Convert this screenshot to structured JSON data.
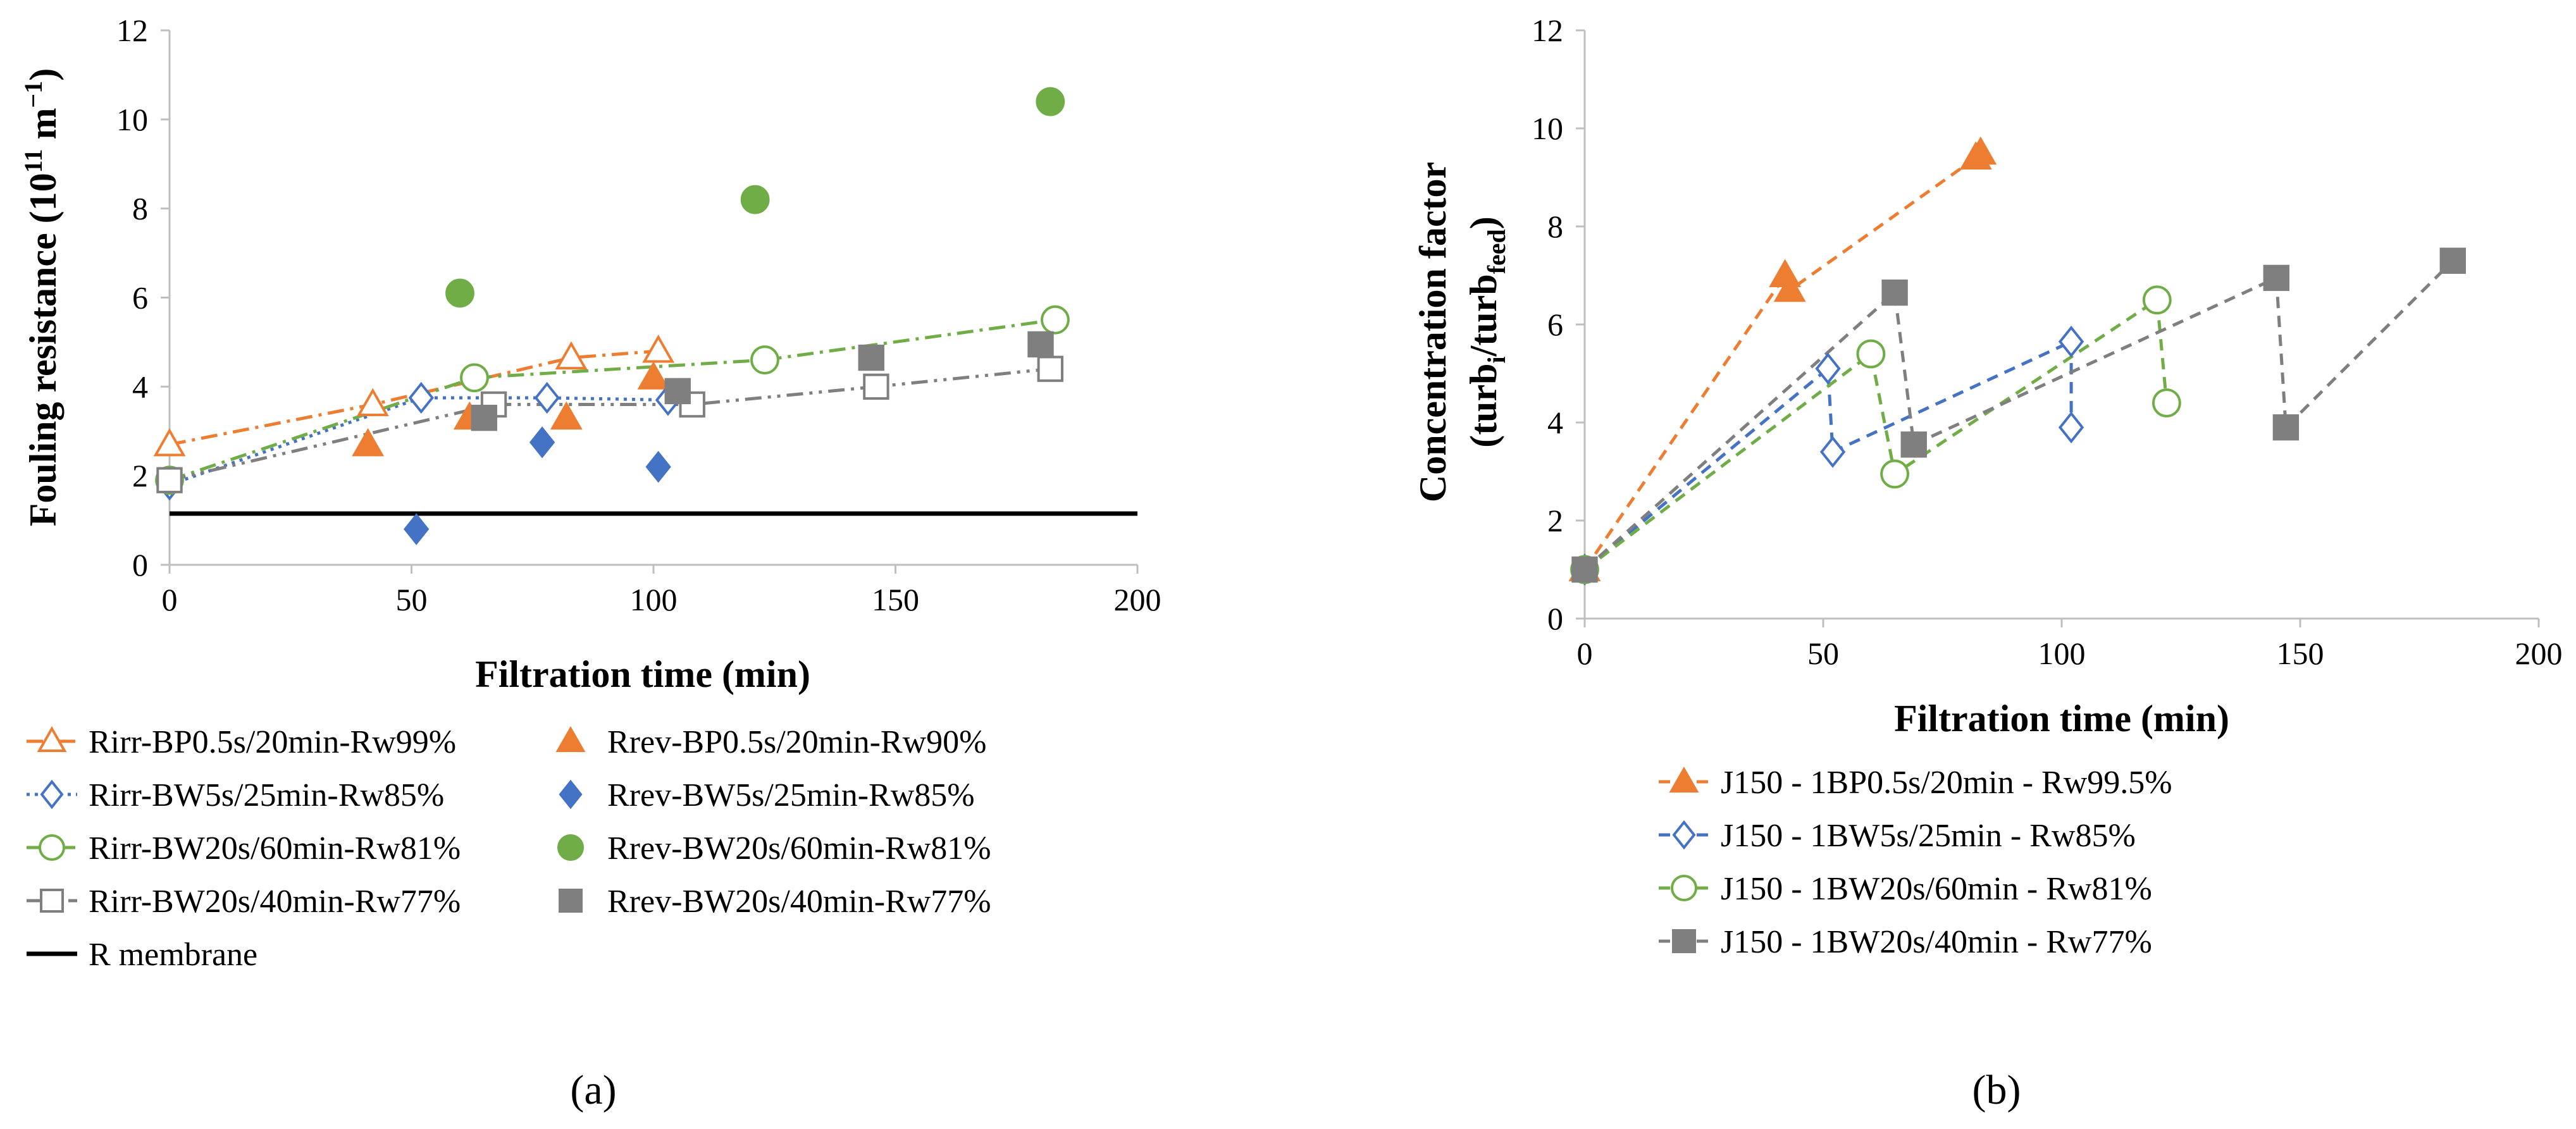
{
  "chart_data": [
    {
      "panel": "a",
      "type": "scatter",
      "title": "",
      "xlabel": "Filtration time (min)",
      "ylabel": "Fouling resistance (10",
      "ylabel_sup": "11",
      "ylabel_unit": " m",
      "ylabel_unit_sup": "−1",
      "ylabel_close": ")",
      "xlim": [
        0,
        200
      ],
      "ylim": [
        0,
        12
      ],
      "xticks": [
        "0",
        "50",
        "100",
        "150",
        "200"
      ],
      "yticks": [
        "0",
        "2",
        "4",
        "6",
        "8",
        "10",
        "12"
      ],
      "grid": false,
      "legend_position": "bottom",
      "reference_line": {
        "name": "R membrane",
        "y": 1.15
      },
      "series": [
        {
          "name": "Rirr-BP0.5s/20min-Rw99%",
          "marker": "triangle-open",
          "line": "dashdot",
          "color": "#ED7D31",
          "x": [
            0,
            42,
            83,
            101
          ],
          "y": [
            2.7,
            3.6,
            4.65,
            4.8
          ]
        },
        {
          "name": "Rrev-BP0.5s/20min-Rw90%",
          "marker": "triangle-filled",
          "line": "none",
          "color": "#ED7D31",
          "x": [
            41,
            62,
            82,
            100
          ],
          "y": [
            2.7,
            3.3,
            3.3,
            4.2
          ]
        },
        {
          "name": "Rirr-BW5s/25min-Rw85%",
          "marker": "diamond-open",
          "line": "dotted",
          "color": "#4472C4",
          "x": [
            0,
            52,
            78,
            103
          ],
          "y": [
            1.8,
            3.75,
            3.75,
            3.7
          ]
        },
        {
          "name": "Rrev-BW5s/25min-Rw85%",
          "marker": "diamond-filled",
          "line": "none",
          "color": "#4472C4",
          "x": [
            51,
            77,
            101
          ],
          "y": [
            0.8,
            2.75,
            2.2
          ]
        },
        {
          "name": "Rirr-BW20s/60min-Rw81%",
          "marker": "circle-open",
          "line": "dashdot",
          "color": "#70AD47",
          "x": [
            0,
            63,
            123,
            183
          ],
          "y": [
            1.9,
            4.2,
            4.6,
            5.5
          ]
        },
        {
          "name": "Rrev-BW20s/60min-Rw81%",
          "marker": "circle-filled",
          "line": "none",
          "color": "#70AD47",
          "x": [
            60,
            121,
            182
          ],
          "y": [
            6.1,
            8.2,
            10.4
          ]
        },
        {
          "name": "Rirr-BW20s/40min-Rw77%",
          "marker": "square-open",
          "line": "dashdotdot",
          "color": "#7F7F7F",
          "x": [
            0,
            67,
            108,
            146,
            182
          ],
          "y": [
            1.9,
            3.6,
            3.6,
            4.0,
            4.4
          ]
        },
        {
          "name": "Rrev-BW20s/40min-Rw77%",
          "marker": "square-filled",
          "line": "none",
          "color": "#7F7F7F",
          "x": [
            65,
            105,
            145,
            180
          ],
          "y": [
            3.3,
            3.9,
            4.65,
            4.95
          ]
        }
      ]
    },
    {
      "panel": "b",
      "type": "line",
      "title": "",
      "xlabel": "Filtration time (min)",
      "ylabel_line1": "Concentration factor",
      "ylabel_line2": {
        "open": "(turb",
        "sub1": "i",
        "mid": "/turb",
        "sub2": "feed",
        "close": ")"
      },
      "xlim": [
        0,
        200
      ],
      "ylim": [
        0,
        12
      ],
      "xticks": [
        "0",
        "50",
        "100",
        "150",
        "200"
      ],
      "yticks": [
        "0",
        "2",
        "4",
        "6",
        "8",
        "10",
        "12"
      ],
      "grid": false,
      "legend_position": "bottom",
      "series": [
        {
          "name": "J150 - 1BP0.5s/20min - Rw99.5%",
          "marker": "triangle-filled",
          "line": "dashed",
          "color": "#ED7D31",
          "x": [
            0,
            42,
            43,
            82,
            83
          ],
          "y": [
            1.0,
            7.0,
            6.7,
            9.4,
            9.5
          ]
        },
        {
          "name": "J150 - 1BW5s/25min - Rw85%",
          "marker": "diamond-open",
          "line": "dashed",
          "color": "#4472C4",
          "x": [
            0,
            51,
            52,
            102,
            102
          ],
          "y": [
            1.0,
            5.1,
            3.4,
            5.65,
            3.9
          ]
        },
        {
          "name": "J150 - 1BW20s/60min - Rw81%",
          "marker": "circle-open",
          "line": "dashed",
          "color": "#70AD47",
          "x": [
            0,
            60,
            65,
            120,
            122
          ],
          "y": [
            1.0,
            5.4,
            2.95,
            6.5,
            4.4
          ]
        },
        {
          "name": "J150 - 1BW20s/40min - Rw77%",
          "marker": "square-filled",
          "line": "dashed",
          "color": "#7F7F7F",
          "x": [
            0,
            65,
            69,
            145,
            147,
            182
          ],
          "y": [
            1.0,
            6.65,
            3.55,
            6.95,
            3.9,
            7.3
          ]
        }
      ]
    }
  ],
  "panel_labels": {
    "a": "(a)",
    "b": "(b)"
  }
}
